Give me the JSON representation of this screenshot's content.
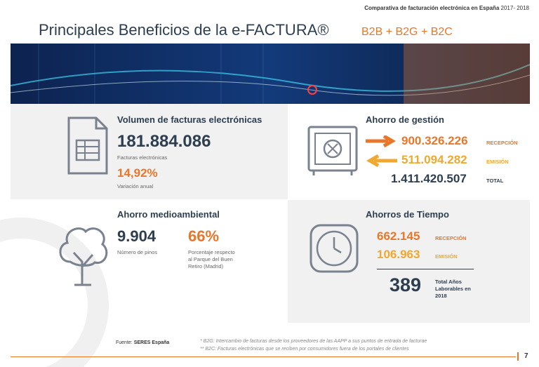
{
  "header": {
    "top_note": "Comparativa de facturación electrónica en España",
    "top_note_period": "2017- 2018",
    "title": "Principales Beneficios de la e-FACTURA®",
    "subtitle": "B2B + B2G + B2C"
  },
  "panels": [
    {
      "title": "Volumen de facturas electrónicas",
      "value": "181.884.086",
      "value_label": "Facturas electrónicas",
      "variation": "14,92%",
      "variation_label": "Variación anual"
    },
    {
      "title": "Ahorro de gestión",
      "rows": [
        {
          "value": "900.326.226",
          "label": "RECEPCIÓN"
        },
        {
          "value": "511.094.282",
          "label": "EMISIÓN"
        },
        {
          "value": "1.411.420.507",
          "label": "TOTAL"
        }
      ]
    },
    {
      "title": "Ahorro medioambiental",
      "value": "9.904",
      "value_label": "Número de pinos",
      "percent": "66%",
      "percent_label": "Porcentaje respecto al Parque del Buen Retiro (Madrid)"
    },
    {
      "title": "Ahorros de Tiempo",
      "rows": [
        {
          "value": "662.145",
          "label": "RECEPCIÓN"
        },
        {
          "value": "106.963",
          "label": "EMISIÓN"
        }
      ],
      "total": "389",
      "total_label": "Total Años Laborables en 2018"
    }
  ],
  "footer": {
    "source_label": "Fuente:",
    "source": "SERES España",
    "notes": [
      "* B2G: Intercambio de facturas desde los proveedores de las AAPP a sus puntos de entrada de facturae",
      "** B2C: Facturas electrónicas que se reciben por consumidores fuera de los portales de clientes"
    ],
    "page": "7"
  }
}
